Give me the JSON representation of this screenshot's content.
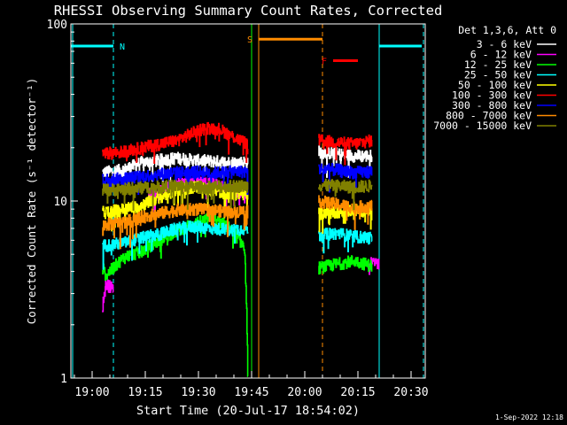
{
  "chart_data": {
    "type": "line",
    "title": "RHESSI Observing Summary Count Rates, Corrected",
    "xlabel": "Start Time (20-Jul-17 18:54:02)",
    "ylabel": "Corrected Count Rate (s⁻¹ detector⁻¹)",
    "y_scale": "log",
    "ylim": [
      1,
      100
    ],
    "y_ticks": [
      "1",
      "10",
      "100"
    ],
    "x_ticks": [
      "19:00",
      "19:15",
      "19:30",
      "19:45",
      "20:00",
      "20:15",
      "20:30"
    ],
    "x_tick_minutes": [
      6,
      21,
      36,
      51,
      66,
      81,
      96
    ],
    "xlim_minutes": [
      0,
      100
    ],
    "grid": false,
    "legend_header": "Det 1,3,6, Att 0",
    "legend_position": "top-right",
    "footer": "1-Sep-2022 12:18",
    "series": [
      {
        "name": "3 - 6 keV",
        "color": "#ffffff",
        "segments": [
          {
            "x": [
              9,
              15,
              20,
              25,
              30,
              35,
              40,
              45,
              50
            ],
            "y": [
              14.5,
              15,
              16.5,
              17,
              17.5,
              17,
              16.8,
              16.5,
              16.6
            ]
          },
          {
            "x": [
              70,
              75,
              80,
              85
            ],
            "y": [
              19,
              18.5,
              18,
              18
            ]
          }
        ]
      },
      {
        "name": "6 - 12 keV",
        "color": "#ff00ff",
        "segments": [
          {
            "x": [
              9,
              10,
              11,
              12
            ],
            "y": [
              2.5,
              3.4,
              3.3,
              3.2
            ]
          },
          {
            "x": [
              22,
              26,
              30,
              35,
              40,
              45,
              50
            ],
            "y": [
              11,
              11.5,
              12.5,
              13,
              12.5,
              11.5,
              11.2
            ]
          },
          {
            "x": [
              84,
              85,
              86,
              87
            ],
            "y": [
              4,
              4.6,
              4.5,
              4.4
            ]
          }
        ]
      },
      {
        "name": "12 - 25 keV",
        "color": "#00ff00",
        "segments": [
          {
            "x": [
              9,
              10,
              15,
              20,
              25,
              30,
              35,
              40,
              45,
              49,
              50
            ],
            "y": [
              4.2,
              3.8,
              4.8,
              5.2,
              6,
              6.8,
              7.5,
              8,
              7,
              5.5,
              1
            ]
          },
          {
            "x": [
              70,
              75,
              80,
              85
            ],
            "y": [
              4.2,
              4.4,
              4.6,
              4.3
            ]
          }
        ]
      },
      {
        "name": "25 - 50 keV",
        "color": "#00ffff",
        "segments": [
          {
            "x": [
              9,
              15,
              20,
              25,
              30,
              35,
              40,
              45,
              50
            ],
            "y": [
              5.6,
              5.8,
              6.2,
              6.5,
              7,
              7.2,
              7,
              6.9,
              7
            ]
          },
          {
            "x": [
              70,
              75,
              80,
              85
            ],
            "y": [
              6.4,
              6.6,
              6.3,
              6.2
            ]
          }
        ]
      },
      {
        "name": "50 - 100 keV",
        "color": "#ffff00",
        "segments": [
          {
            "x": [
              9,
              15,
              20,
              25,
              30,
              35,
              40,
              45,
              50
            ],
            "y": [
              8.6,
              9,
              9.5,
              10.5,
              11.5,
              12,
              11.5,
              11,
              11
            ]
          },
          {
            "x": [
              70,
              75,
              80,
              85
            ],
            "y": [
              8.5,
              8.7,
              8.9,
              8.8
            ]
          }
        ]
      },
      {
        "name": "100 - 300 keV",
        "color": "#ff0000",
        "segments": [
          {
            "x": [
              9,
              15,
              20,
              25,
              30,
              35,
              38,
              42,
              46,
              50
            ],
            "y": [
              18.5,
              19,
              20,
              21,
              22,
              24.5,
              26,
              25.5,
              23,
              21
            ]
          },
          {
            "x": [
              70,
              75,
              80,
              85
            ],
            "y": [
              22,
              21.5,
              21,
              22
            ]
          }
        ]
      },
      {
        "name": "300 - 800 keV",
        "color": "#0000ff",
        "segments": [
          {
            "x": [
              9,
              15,
              20,
              25,
              30,
              35,
              40,
              45,
              50
            ],
            "y": [
              13.2,
              13.4,
              13.8,
              14.2,
              14.5,
              14.6,
              14.4,
              14.6,
              14.7
            ]
          },
          {
            "x": [
              70,
              75,
              80,
              85
            ],
            "y": [
              15.2,
              15,
              14.5,
              14.7
            ]
          }
        ]
      },
      {
        "name": "800 - 7000 keV",
        "color": "#ff8c00",
        "segments": [
          {
            "x": [
              9,
              15,
              20,
              25,
              30,
              35,
              40,
              45,
              50
            ],
            "y": [
              7.3,
              7.6,
              8.1,
              8.5,
              8.9,
              9,
              8.9,
              8.7,
              8.8
            ]
          },
          {
            "x": [
              70,
              75,
              80,
              85
            ],
            "y": [
              10,
              9.6,
              9.2,
              9.4
            ]
          }
        ]
      },
      {
        "name": "7000 - 15000 keV",
        "color": "#808000",
        "segments": [
          {
            "x": [
              9,
              15,
              20,
              25,
              30,
              35,
              40,
              45,
              50
            ],
            "y": [
              11.5,
              11.7,
              11.9,
              12,
              12.2,
              12,
              12,
              12.1,
              12.2
            ]
          },
          {
            "x": [
              70,
              75,
              80,
              85
            ],
            "y": [
              12.3,
              12.2,
              12,
              12.2
            ]
          }
        ]
      }
    ],
    "flags": [
      {
        "label": "N",
        "color": "#00ffff",
        "x_start": 0,
        "x_end": 12,
        "level": 75
      },
      {
        "label": "",
        "color": "#00ffff",
        "x_start": 87,
        "x_end": 99,
        "level": 75
      },
      {
        "label": "S",
        "color": "#ff8c00",
        "x_start": 53,
        "x_end": 71,
        "level": 82
      },
      {
        "label": "F",
        "color": "#ff0000",
        "x_start": 74,
        "x_end": 81,
        "level": 62
      }
    ],
    "vertical_lines": [
      {
        "x": 0.5,
        "color": "#00ffff",
        "style": "solid"
      },
      {
        "x": 12,
        "color": "#00ffff",
        "style": "dashed"
      },
      {
        "x": 87,
        "color": "#00ffff",
        "style": "solid"
      },
      {
        "x": 99.5,
        "color": "#00ffff",
        "style": "dashed"
      },
      {
        "x": 53,
        "color": "#ff8c00",
        "style": "solid"
      },
      {
        "x": 71,
        "color": "#ff8c00",
        "style": "dashed"
      },
      {
        "x": 51,
        "color": "#00ff00",
        "style": "solid"
      }
    ]
  }
}
